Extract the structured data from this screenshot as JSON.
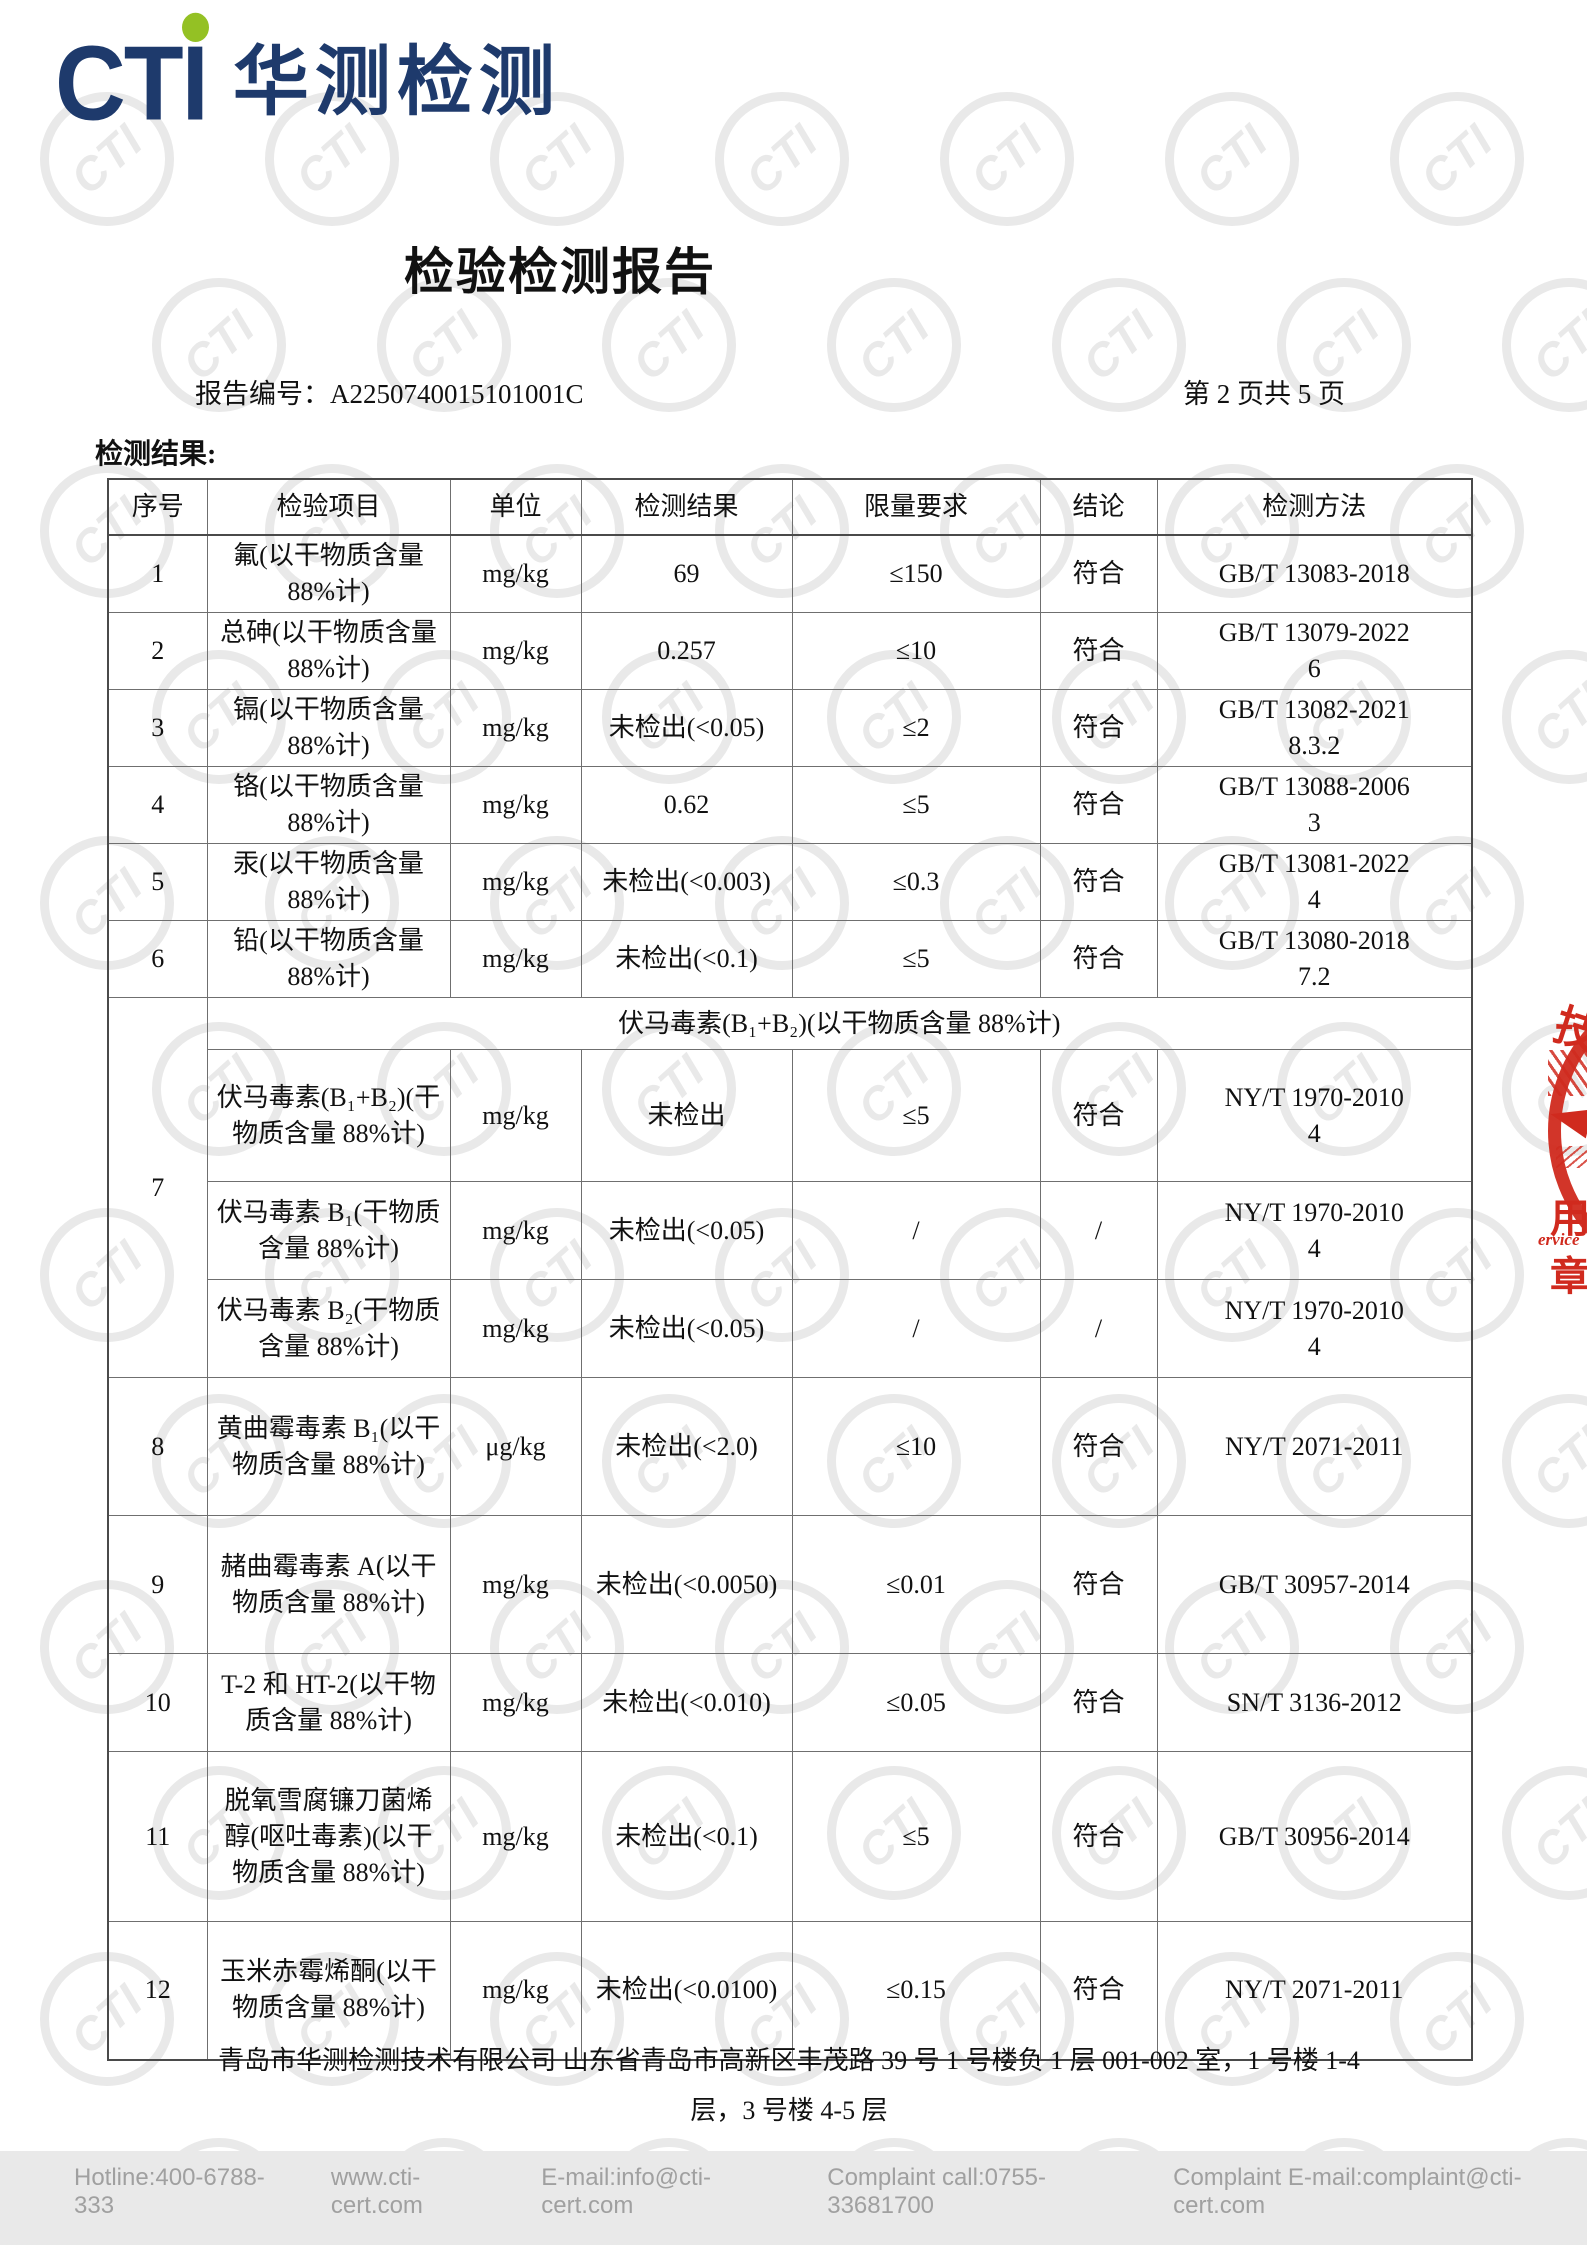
{
  "logo": {
    "cti": "CTI",
    "chinese": "华测检测"
  },
  "title": "检验检测报告",
  "meta": {
    "report_label": "报告编号：",
    "report_no": "A2250740015101001C",
    "page_info": "第 2 页共 5 页"
  },
  "section_heading": "检测结果:",
  "table": {
    "headers": [
      "序号",
      "检验项目",
      "单位",
      "检测结果",
      "限量要求",
      "结论",
      "检测方法"
    ],
    "rows": [
      {
        "no": "1",
        "item": "氟(以干物质含量 88%计)",
        "unit": "mg/kg",
        "result": "69",
        "limit": "≤150",
        "conclusion": "符合",
        "method": "GB/T 13083-2018"
      },
      {
        "no": "2",
        "item": "总砷(以干物质含量 88%计)",
        "unit": "mg/kg",
        "result": "0.257",
        "limit": "≤10",
        "conclusion": "符合",
        "method": "GB/T 13079-2022\n6"
      },
      {
        "no": "3",
        "item": "镉(以干物质含量 88%计)",
        "unit": "mg/kg",
        "result": "未检出(<0.05)",
        "limit": "≤2",
        "conclusion": "符合",
        "method": "GB/T 13082-2021\n8.3.2"
      },
      {
        "no": "4",
        "item": "铬(以干物质含量 88%计)",
        "unit": "mg/kg",
        "result": "0.62",
        "limit": "≤5",
        "conclusion": "符合",
        "method": "GB/T 13088-2006\n3"
      },
      {
        "no": "5",
        "item": "汞(以干物质含量 88%计)",
        "unit": "mg/kg",
        "result": "未检出(<0.003)",
        "limit": "≤0.3",
        "conclusion": "符合",
        "method": "GB/T 13081-2022\n4"
      },
      {
        "no": "6",
        "item": "铅(以干物质含量 88%计)",
        "unit": "mg/kg",
        "result": "未检出(<0.1)",
        "limit": "≤5",
        "conclusion": "符合",
        "method": "GB/T 13080-2018\n7.2"
      }
    ],
    "group": {
      "no": "7",
      "title": "伏马毒素(B₁+B₂)(以干物质含量 88%计)",
      "subrows": [
        {
          "item": "伏马毒素(B₁+B₂)(干物质含量 88%计)",
          "unit": "mg/kg",
          "result": "未检出",
          "limit": "≤5",
          "conclusion": "符合",
          "method": "NY/T 1970-2010\n4"
        },
        {
          "item": "伏马毒素 B₁(干物质含量 88%计)",
          "unit": "mg/kg",
          "result": "未检出(<0.05)",
          "limit": "/",
          "conclusion": "/",
          "method": "NY/T 1970-2010\n4"
        },
        {
          "item": "伏马毒素 B₂(干物质含量 88%计)",
          "unit": "mg/kg",
          "result": "未检出(<0.05)",
          "limit": "/",
          "conclusion": "/",
          "method": "NY/T 1970-2010\n4"
        }
      ]
    },
    "rows2": [
      {
        "no": "8",
        "item": "黄曲霉毒素 B₁(以干物质含量 88%计)",
        "unit": "μg/kg",
        "result": "未检出(<2.0)",
        "limit": "≤10",
        "conclusion": "符合",
        "method": "NY/T 2071-2011"
      },
      {
        "no": "9",
        "item": "赭曲霉毒素 A(以干物质含量 88%计)",
        "unit": "mg/kg",
        "result": "未检出(<0.0050)",
        "limit": "≤0.01",
        "conclusion": "符合",
        "method": "GB/T 30957-2014"
      },
      {
        "no": "10",
        "item": "T-2 和 HT-2(以干物质含量 88%计)",
        "unit": "mg/kg",
        "result": "未检出(<0.010)",
        "limit": "≤0.05",
        "conclusion": "符合",
        "method": "SN/T 3136-2012"
      },
      {
        "no": "11",
        "item": "脱氧雪腐镰刀菌烯醇(呕吐毒素)(以干物质含量 88%计)",
        "unit": "mg/kg",
        "result": "未检出(<0.1)",
        "limit": "≤5",
        "conclusion": "符合",
        "method": "GB/T 30956-2014"
      },
      {
        "no": "12",
        "item": "玉米赤霉烯酮(以干物质含量 88%计)",
        "unit": "mg/kg",
        "result": "未检出(<0.0100)",
        "limit": "≤0.15",
        "conclusion": "符合",
        "method": "NY/T 2071-2011"
      }
    ]
  },
  "footer": {
    "address_line1": "青岛市华测检测技术有限公司 山东省青岛市高新区丰茂路 39 号 1 号楼负 1 层 001-002 室，1 号楼 1-4",
    "address_line2": "层，3 号楼 4-5 层"
  },
  "bottom_bar": {
    "items": [
      "Hotline:400-6788-333",
      "www.cti-cert.com",
      "E-mail:info@cti-cert.com",
      "Complaint call:0755-33681700",
      "Complaint E-mail:complaint@cti-cert.com"
    ]
  },
  "stamp": {
    "char_top": "技",
    "char_bottom": "用章",
    "latin": "ervice"
  },
  "watermark": {
    "text": "CTI"
  },
  "colors": {
    "brand_blue": "#1e3a6c",
    "logo_green": "#94c124",
    "stamp_red": "#d02a1e",
    "watermark_gray": "#e9e9e9",
    "bar_bg": "#e9e9e9",
    "bar_text": "#a0a0a0"
  }
}
